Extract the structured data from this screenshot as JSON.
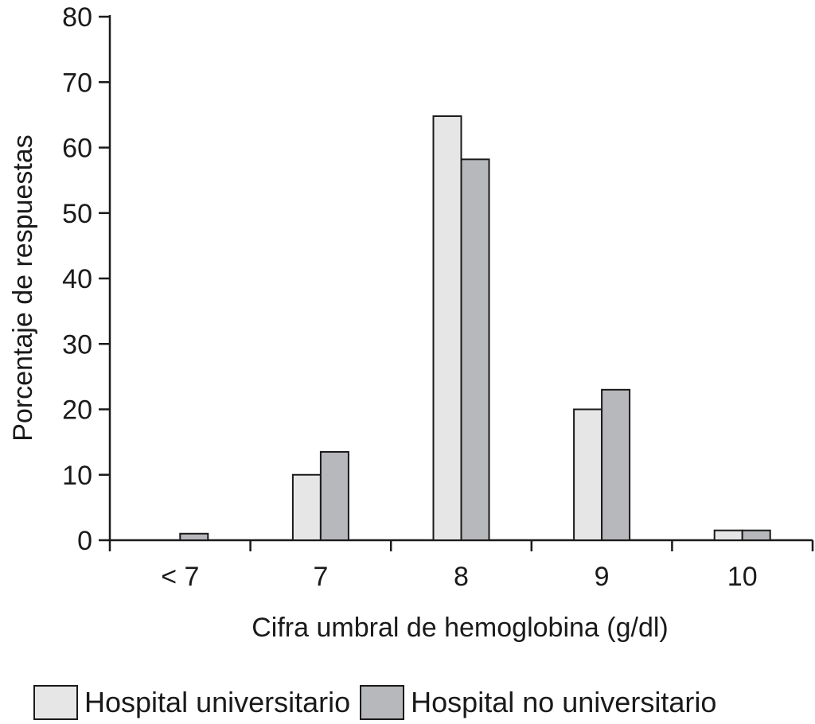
{
  "chart_data": {
    "type": "bar",
    "categories": [
      "< 7",
      "7",
      "8",
      "9",
      "10"
    ],
    "series": [
      {
        "name": "Hospital universitario",
        "values": [
          0,
          10,
          64.8,
          20,
          1.5
        ],
        "color": "#e6e6e6"
      },
      {
        "name": "Hospital no universitario",
        "values": [
          1,
          13.5,
          58.2,
          23,
          1.5
        ],
        "color": "#b7b8bb"
      }
    ],
    "xlabel": "Cifra umbral de hemoglobina (g/dl)",
    "ylabel": "Porcentaje de respuestas",
    "ylim": [
      0,
      80
    ],
    "yticks": [
      "0",
      "10",
      "20",
      "30",
      "40",
      "50",
      "60",
      "70",
      "80"
    ],
    "grid": false,
    "legend_position": "bottom"
  }
}
